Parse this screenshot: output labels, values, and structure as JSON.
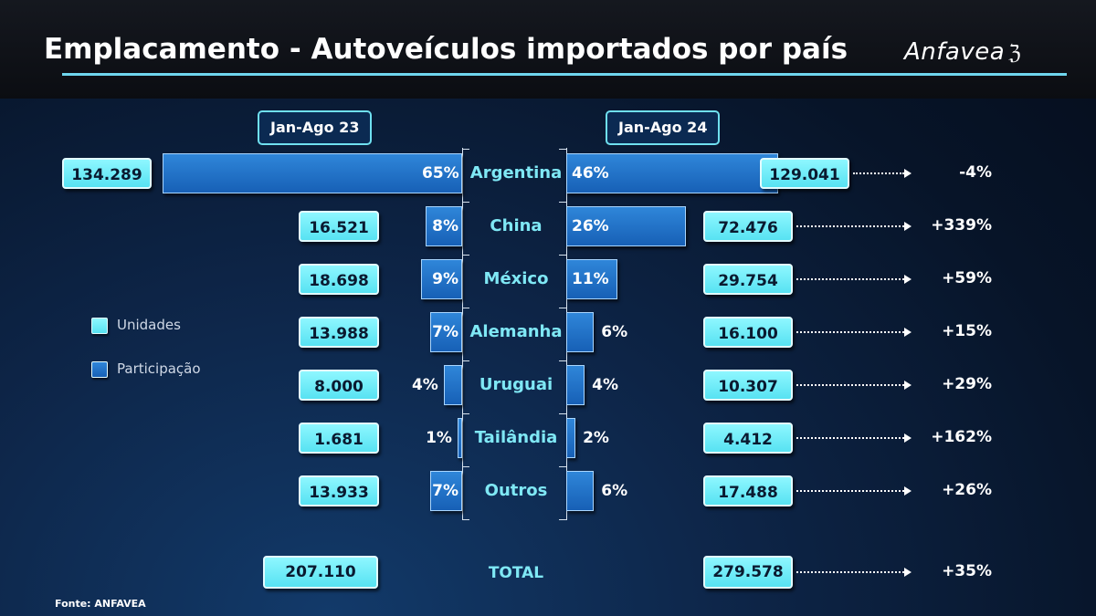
{
  "title": "Emplacamento - Autoveículos importados por país",
  "logo": "Anfavea",
  "source": "Fonte: ANFAVEA",
  "legend": {
    "units": "Unidades",
    "share": "Participação"
  },
  "colors": {
    "units": "#6fe8f4",
    "share": "#1f6fc8",
    "accent_rule": "#6fd6ee"
  },
  "chart_data": {
    "type": "bar",
    "periods": [
      "Jan-Ago 23",
      "Jan-Ago 24"
    ],
    "categories": [
      "Argentina",
      "China",
      "México",
      "Alemanha",
      "Uruguai",
      "Tailândia",
      "Outros"
    ],
    "series": [
      {
        "name": "Jan-Ago 23",
        "units": [
          "134.289",
          "16.521",
          "18.698",
          "13.988",
          "8.000",
          "1.681",
          "13.933"
        ],
        "share": [
          65,
          8,
          9,
          7,
          4,
          1,
          7
        ],
        "share_labels": [
          "65%",
          "8%",
          "9%",
          "7%",
          "4%",
          "1%",
          "7%"
        ]
      },
      {
        "name": "Jan-Ago 24",
        "units": [
          "129.041",
          "72.476",
          "29.754",
          "16.100",
          "10.307",
          "4.412",
          "17.488"
        ],
        "share": [
          46,
          26,
          11,
          6,
          4,
          2,
          6
        ],
        "share_labels": [
          "46%",
          "26%",
          "11%",
          "6%",
          "4%",
          "2%",
          "6%"
        ]
      }
    ],
    "variation": [
      "-4%",
      "+339%",
      "+59%",
      "+15%",
      "+29%",
      "+162%",
      "+26%"
    ],
    "total": {
      "label": "TOTAL",
      "units_23": "207.110",
      "units_24": "279.578",
      "variation": "+35%"
    }
  }
}
